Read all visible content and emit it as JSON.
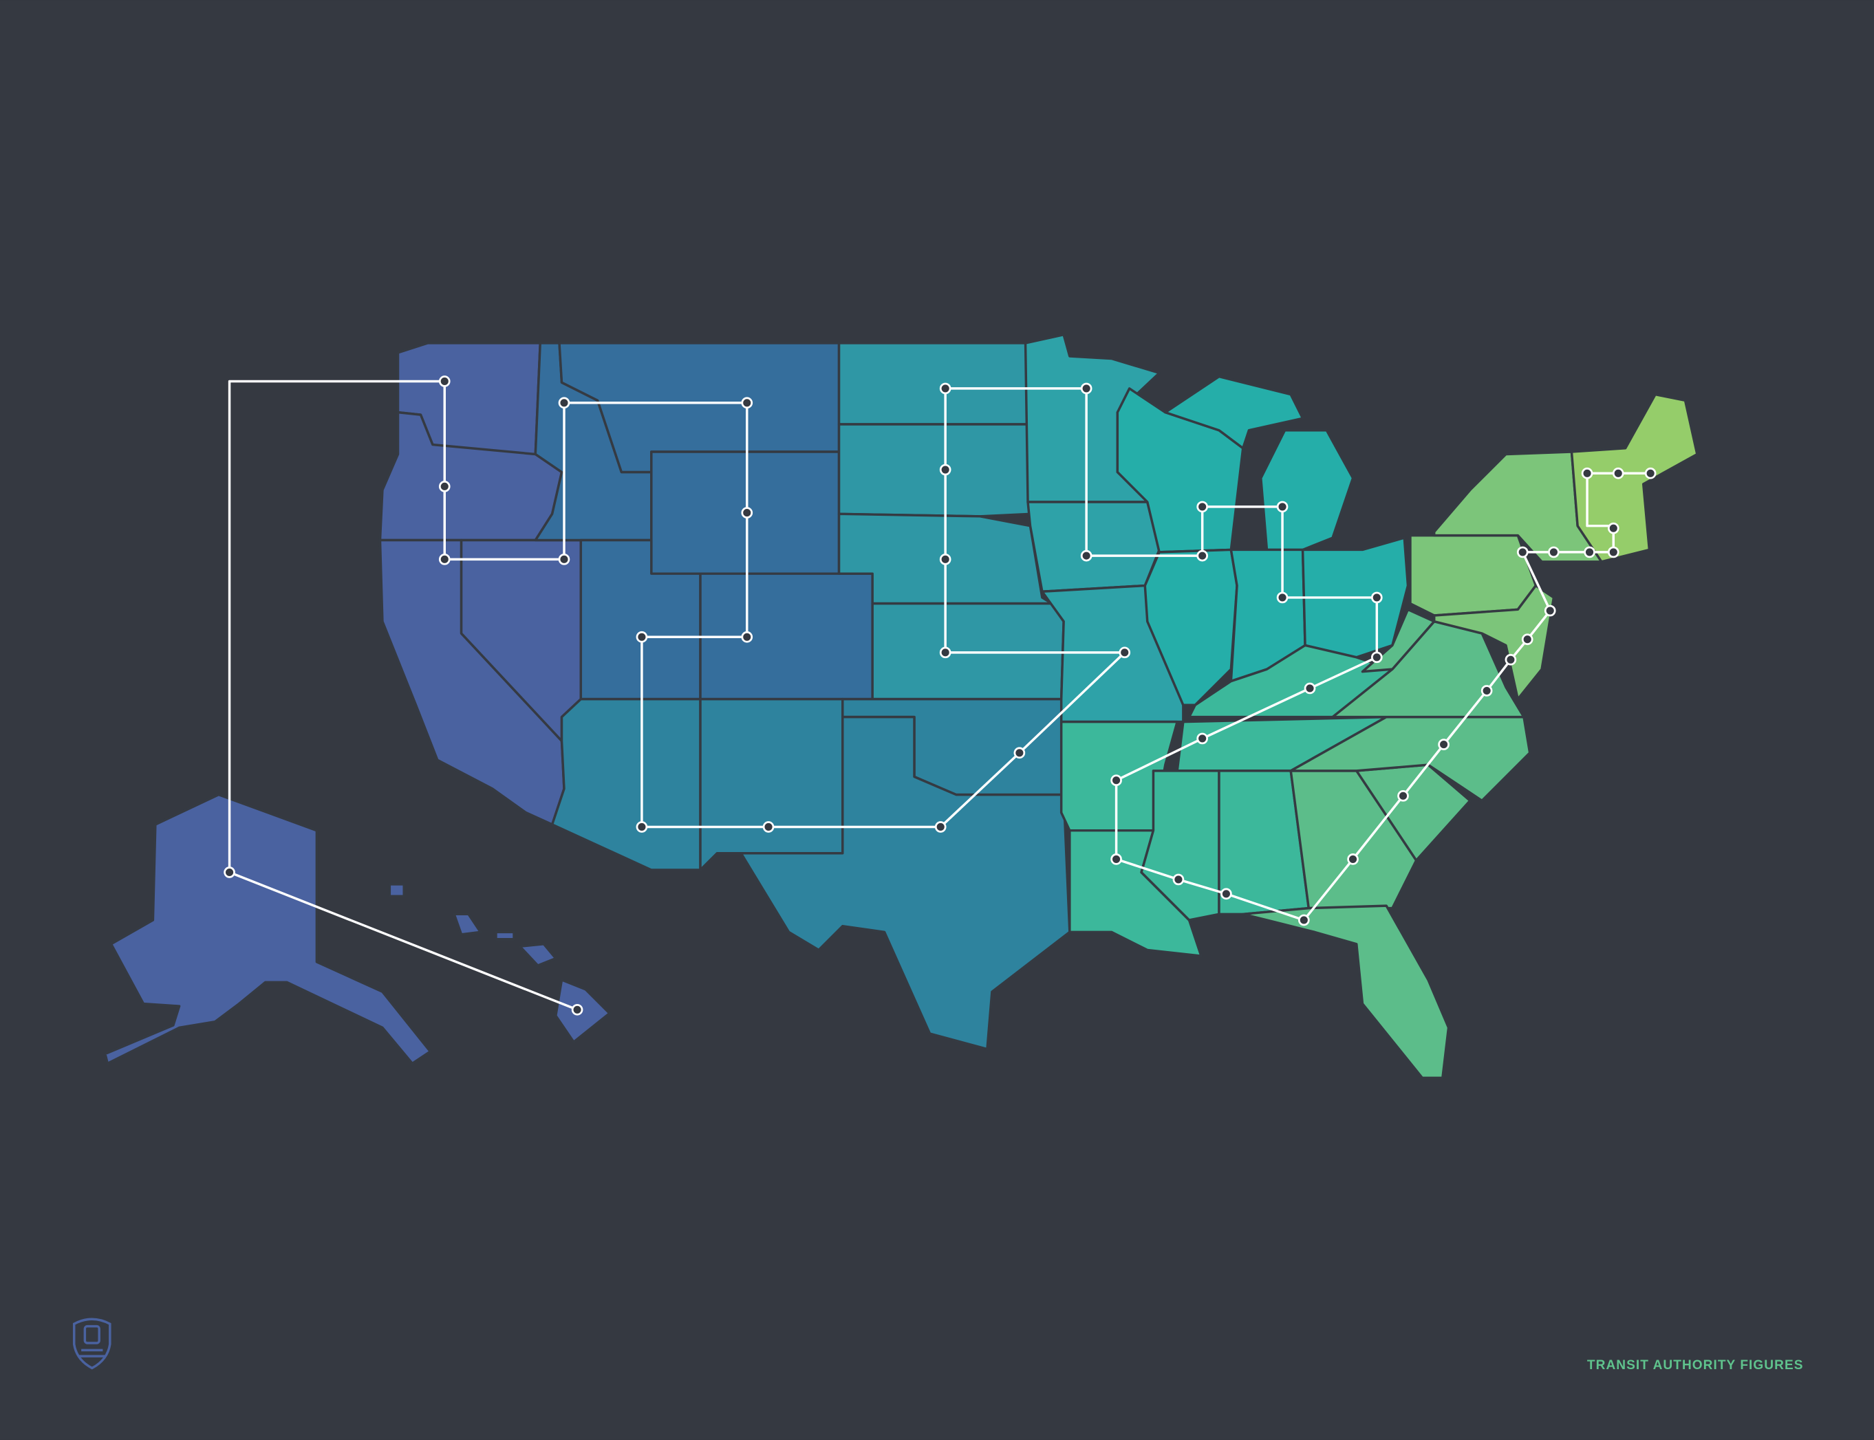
{
  "footer": {
    "label": "TRANSIT AUTHORITY FIGURES"
  }
}
